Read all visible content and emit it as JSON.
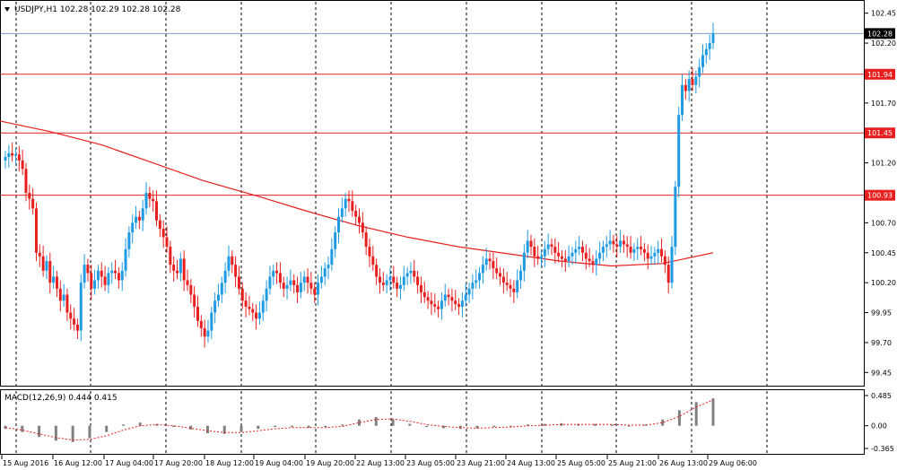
{
  "header": {
    "symbol_line": "USDJPY,H1  102.28 102.29 102.28 102.28",
    "macd_label": "MACD(12,26,9) 0.444 0.415"
  },
  "colors": {
    "bull": "#1E9BE3",
    "bear": "#E81F1F",
    "ma": "#E81F1F",
    "hline": "#E81F1F",
    "bid_line": "#7A9FC6",
    "grid": "#000000",
    "hist": "#808080",
    "signal": "#E81F1F"
  },
  "chart_data": [
    {
      "type": "candlestick",
      "title": "USDJPY,H1",
      "ylim": [
        99.4,
        102.5
      ],
      "y_ticks": [
        "102.45",
        "102.20",
        "101.70",
        "101.20",
        "100.70",
        "100.45",
        "100.20",
        "99.95",
        "99.70",
        "99.45"
      ],
      "x_ticks": [
        "15 Aug 2016",
        "16 Aug 12:00",
        "17 Aug 04:00",
        "17 Aug 20:00",
        "18 Aug 12:00",
        "19 Aug 04:00",
        "19 Aug 20:00",
        "22 Aug 13:00",
        "23 Aug 05:00",
        "23 Aug 21:00",
        "24 Aug 13:00",
        "25 Aug 05:00",
        "25 Aug 21:00",
        "26 Aug 13:00",
        "29 Aug 06:00"
      ],
      "price_labels": [
        "102.28",
        "101.94",
        "101.45",
        "100.93"
      ],
      "horizontal_lines": [
        101.94,
        101.45,
        100.93
      ],
      "bid_line": 102.28,
      "grid": true,
      "series": [
        {
          "name": "Close",
          "values": [
            101.25,
            101.28,
            101.26,
            101.27,
            101.22,
            101.15,
            100.95,
            100.9,
            100.82,
            100.45,
            100.42,
            100.3,
            100.38,
            100.2,
            100.25,
            100.15,
            100.05,
            100.1,
            99.95,
            99.9,
            99.85,
            99.8,
            100.2,
            100.35,
            100.28,
            100.15,
            100.22,
            100.3,
            100.25,
            100.18,
            100.28,
            100.3,
            100.28,
            100.22,
            100.3,
            100.48,
            100.62,
            100.7,
            100.75,
            100.72,
            100.82,
            100.95,
            100.9,
            100.88,
            100.72,
            100.65,
            100.58,
            100.5,
            100.35,
            100.3,
            100.28,
            100.4,
            100.22,
            100.18,
            100.1,
            100.0,
            99.88,
            99.82,
            99.75,
            99.8,
            99.95,
            100.05,
            100.1,
            100.2,
            100.3,
            100.42,
            100.35,
            100.25,
            100.15,
            100.05,
            100.0,
            99.98,
            99.95,
            99.9,
            99.95,
            100.05,
            100.15,
            100.25,
            100.3,
            100.28,
            100.2,
            100.15,
            100.18,
            100.22,
            100.18,
            100.12,
            100.2,
            100.25,
            100.2,
            100.15,
            100.1,
            100.2,
            100.25,
            100.32,
            100.35,
            100.48,
            100.62,
            100.75,
            100.82,
            100.9,
            100.88,
            100.8,
            100.75,
            100.7,
            100.62,
            100.5,
            100.42,
            100.35,
            100.25,
            100.2,
            100.18,
            100.22,
            100.25,
            100.2,
            100.15,
            100.18,
            100.25,
            100.28,
            100.3,
            100.25,
            100.18,
            100.12,
            100.08,
            100.05,
            100.02,
            100.0,
            99.98,
            100.05,
            100.1,
            100.08,
            100.05,
            100.02,
            100.0,
            100.05,
            100.1,
            100.15,
            100.2,
            100.22,
            100.28,
            100.35,
            100.4,
            100.38,
            100.32,
            100.28,
            100.25,
            100.2,
            100.18,
            100.15,
            100.12,
            100.22,
            100.3,
            100.45,
            100.55,
            100.5,
            100.42,
            100.4,
            100.42,
            100.48,
            100.52,
            100.5,
            100.45,
            100.42,
            100.4,
            100.38,
            100.42,
            100.45,
            100.48,
            100.5,
            100.45,
            100.4,
            100.38,
            100.35,
            100.4,
            100.45,
            100.5,
            100.52,
            100.55,
            100.52,
            100.5,
            100.55,
            100.52,
            100.5,
            100.45,
            100.48,
            100.5,
            100.48,
            100.45,
            100.4,
            100.42,
            100.45,
            100.48,
            100.42,
            100.35,
            100.2,
            100.5,
            101.0,
            101.6,
            101.85,
            101.8,
            101.9,
            101.85,
            101.92,
            102.0,
            102.1,
            102.15,
            102.2,
            102.28
          ]
        },
        {
          "name": "Moving Average",
          "values": [
            101.55,
            101.46,
            101.35,
            101.2,
            101.05,
            100.93,
            100.8,
            100.68,
            100.58,
            100.5,
            100.44,
            100.38,
            100.34,
            100.36,
            100.45
          ]
        }
      ]
    },
    {
      "type": "bar",
      "title": "MACD(12,26,9)",
      "ylim": [
        -0.365,
        0.485
      ],
      "y_ticks": [
        "0.485",
        "0.00",
        "-0.365"
      ],
      "series": [
        {
          "name": "MACD",
          "values": [
            -0.05,
            -0.1,
            -0.18,
            -0.24,
            -0.26,
            -0.2,
            -0.1,
            0.02,
            0.05,
            0.03,
            -0.02,
            -0.06,
            -0.12,
            -0.13,
            -0.1,
            -0.05,
            -0.02,
            -0.02,
            -0.03,
            -0.02,
            0.02,
            0.1,
            0.14,
            0.1,
            0.03,
            -0.02,
            -0.04,
            -0.05,
            -0.04,
            -0.02,
            0.0,
            0.02,
            0.03,
            0.04,
            0.03,
            0.03,
            0.02,
            0.0,
            0.02,
            0.1,
            0.25,
            0.38,
            0.44
          ]
        },
        {
          "name": "Signal",
          "values": [
            -0.03,
            -0.07,
            -0.13,
            -0.19,
            -0.23,
            -0.22,
            -0.16,
            -0.07,
            0.0,
            0.02,
            0.0,
            -0.04,
            -0.08,
            -0.11,
            -0.11,
            -0.08,
            -0.05,
            -0.03,
            -0.03,
            -0.03,
            -0.01,
            0.05,
            0.1,
            0.11,
            0.07,
            0.02,
            -0.01,
            -0.03,
            -0.04,
            -0.03,
            -0.02,
            0.0,
            0.01,
            0.02,
            0.02,
            0.02,
            0.02,
            0.01,
            0.01,
            0.05,
            0.15,
            0.3,
            0.415
          ]
        }
      ]
    }
  ]
}
